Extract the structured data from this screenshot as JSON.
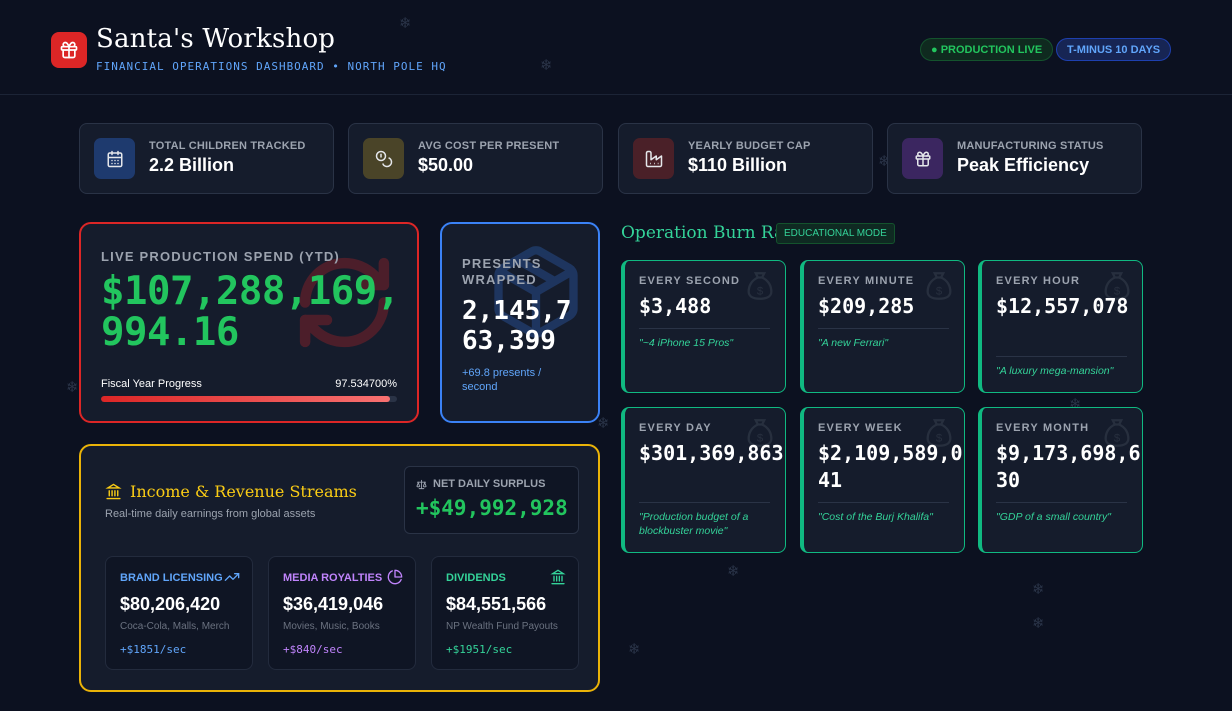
{
  "header": {
    "title": "Santa's Workshop",
    "subtitle": "FINANCIAL OPERATIONS DASHBOARD • NORTH POLE HQ",
    "status_live": "● PRODUCTION LIVE",
    "countdown": "T-MINUS 10 DAYS"
  },
  "stats": [
    {
      "label": "TOTAL CHILDREN TRACKED",
      "value": "2.2 Billion",
      "icon": "calendar-icon",
      "color": "#3b82f6"
    },
    {
      "label": "AVG COST PER PRESENT",
      "value": "$50.00",
      "icon": "coins-icon",
      "color": "#eab308"
    },
    {
      "label": "YEARLY BUDGET CAP",
      "value": "$110 Billion",
      "icon": "factory-icon",
      "color": "#ef4444"
    },
    {
      "label": "MANUFACTURING STATUS",
      "value": "Peak Efficiency",
      "icon": "gift-icon",
      "color": "#a855f7"
    }
  ],
  "live_spend": {
    "label": "LIVE PRODUCTION SPEND (YTD)",
    "value": "$107,288,169,994.16",
    "progress_label": "Fiscal Year Progress",
    "progress_text": "97.534700%",
    "progress_fraction": 0.975347
  },
  "presents": {
    "label": "PRESENTS WRAPPED",
    "value": "2,145,763,399",
    "rate": "+69.8 presents / second"
  },
  "income": {
    "title": "Income & Revenue Streams",
    "subtitle": "Real-time daily earnings from global assets",
    "surplus_label": "NET DAILY SURPLUS",
    "surplus_value": "+$49,992,928",
    "streams": [
      {
        "label": "BRAND LICENSING",
        "value": "$80,206,420",
        "desc": "Coca-Cola, Malls, Merch",
        "rate": "+$1851/sec",
        "color": "#60a5fa",
        "icon": "trending-up-icon"
      },
      {
        "label": "MEDIA ROYALTIES",
        "value": "$36,419,046",
        "desc": "Movies, Music, Books",
        "rate": "+$840/sec",
        "color": "#c084fc",
        "icon": "pie-chart-icon"
      },
      {
        "label": "DIVIDENDS",
        "value": "$84,551,566",
        "desc": "NP Wealth Fund Payouts",
        "rate": "+$1951/sec",
        "color": "#34d399",
        "icon": "bank-icon"
      }
    ]
  },
  "burn_rate": {
    "title": "Operation Burn Rate",
    "badge": "EDUCATIONAL MODE",
    "items": [
      {
        "label": "EVERY SECOND",
        "value": "$3,488",
        "note": "\"~4 iPhone 15 Pros\""
      },
      {
        "label": "EVERY MINUTE",
        "value": "$209,285",
        "note": "\"A new Ferrari\""
      },
      {
        "label": "EVERY HOUR",
        "value": "$12,557,078",
        "note": "\"A luxury mega-mansion\""
      },
      {
        "label": "EVERY DAY",
        "value": "$301,369,863",
        "note": "\"Production budget of a blockbuster movie\""
      },
      {
        "label": "EVERY WEEK",
        "value": "$2,109,589,041",
        "note": "\"Cost of the Burj Khalifa\""
      },
      {
        "label": "EVERY MONTH",
        "value": "$9,173,698,630",
        "note": "\"GDP of a small country\""
      }
    ]
  }
}
